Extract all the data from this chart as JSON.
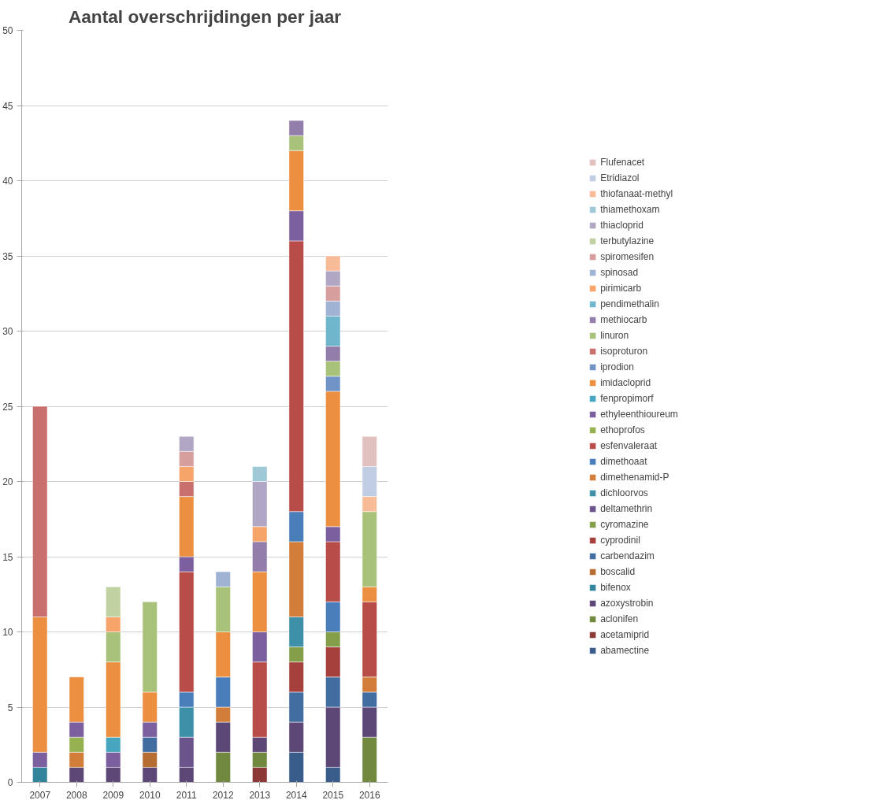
{
  "chart_data": {
    "type": "bar",
    "stacked": true,
    "title": "Aantal overschrijdingen per jaar",
    "categories": [
      "2007",
      "2008",
      "2009",
      "2010",
      "2011",
      "2012",
      "2013",
      "2014",
      "2015",
      "2016"
    ],
    "ylim": [
      0,
      50
    ],
    "yticks": [
      0,
      5,
      10,
      15,
      20,
      25,
      30,
      35,
      40,
      45,
      50
    ],
    "grid": "y",
    "legend": "right",
    "series": [
      {
        "name": "abamectine",
        "color": "#385d8a",
        "values": [
          null,
          null,
          null,
          null,
          null,
          null,
          null,
          2,
          1,
          null
        ]
      },
      {
        "name": "acetamiprid",
        "color": "#8c3836",
        "values": [
          null,
          null,
          null,
          null,
          null,
          null,
          1,
          null,
          null,
          null
        ]
      },
      {
        "name": "aclonifen",
        "color": "#71893f",
        "values": [
          null,
          null,
          null,
          null,
          null,
          2,
          1,
          null,
          null,
          3
        ]
      },
      {
        "name": "azoxystrobin",
        "color": "#5c4776",
        "values": [
          null,
          1,
          1,
          1,
          1,
          2,
          1,
          2,
          4,
          2
        ]
      },
      {
        "name": "bifenox",
        "color": "#31849b",
        "values": [
          1,
          null,
          null,
          null,
          null,
          null,
          null,
          null,
          null,
          null
        ]
      },
      {
        "name": "boscalid",
        "color": "#b66d31",
        "values": [
          null,
          null,
          null,
          1,
          null,
          null,
          null,
          null,
          null,
          null
        ]
      },
      {
        "name": "carbendazim",
        "color": "#426da0",
        "values": [
          null,
          null,
          null,
          1,
          null,
          null,
          null,
          2,
          2,
          1
        ]
      },
      {
        "name": "cyprodinil",
        "color": "#a5403d",
        "values": [
          null,
          null,
          null,
          null,
          null,
          null,
          null,
          2,
          2,
          null
        ]
      },
      {
        "name": "cyromazine",
        "color": "#849e4a",
        "values": [
          null,
          null,
          null,
          null,
          null,
          null,
          null,
          1,
          1,
          null
        ]
      },
      {
        "name": "deltamethrin",
        "color": "#6b548c",
        "values": [
          null,
          null,
          null,
          null,
          2,
          null,
          null,
          null,
          null,
          null
        ]
      },
      {
        "name": "dichloorvos",
        "color": "#3d90a8",
        "values": [
          null,
          null,
          null,
          null,
          2,
          null,
          null,
          2,
          null,
          null
        ]
      },
      {
        "name": "dimethenamid-P",
        "color": "#d27e3a",
        "values": [
          null,
          1,
          null,
          null,
          null,
          1,
          null,
          5,
          null,
          1
        ]
      },
      {
        "name": "dimethoaat",
        "color": "#4a7ebb",
        "values": [
          null,
          null,
          null,
          null,
          1,
          2,
          null,
          2,
          2,
          null
        ]
      },
      {
        "name": "esfenvaleraat",
        "color": "#b84c48",
        "values": [
          null,
          null,
          null,
          null,
          8,
          null,
          5,
          18,
          4,
          5
        ]
      },
      {
        "name": "ethoprofos",
        "color": "#96b250",
        "values": [
          null,
          1,
          null,
          null,
          null,
          null,
          null,
          null,
          null,
          null
        ]
      },
      {
        "name": "ethyleenthioureum",
        "color": "#7b5f9e",
        "values": [
          1,
          1,
          1,
          1,
          1,
          null,
          2,
          2,
          1,
          null
        ]
      },
      {
        "name": "fenpropimorf",
        "color": "#46a5bf",
        "values": [
          null,
          null,
          1,
          null,
          null,
          null,
          null,
          null,
          null,
          null
        ]
      },
      {
        "name": "imidacloprid",
        "color": "#ec8f41",
        "values": [
          9,
          3,
          5,
          2,
          4,
          3,
          4,
          4,
          9,
          1
        ]
      },
      {
        "name": "iprodion",
        "color": "#7094c6",
        "values": [
          null,
          null,
          null,
          null,
          null,
          null,
          null,
          null,
          1,
          null
        ]
      },
      {
        "name": "isoproturon",
        "color": "#c9706e",
        "values": [
          14,
          null,
          null,
          null,
          1,
          null,
          null,
          null,
          null,
          null
        ]
      },
      {
        "name": "linuron",
        "color": "#a9c27a",
        "values": [
          null,
          null,
          2,
          6,
          null,
          3,
          null,
          1,
          1,
          5
        ]
      },
      {
        "name": "methiocarb",
        "color": "#927dab",
        "values": [
          null,
          null,
          null,
          null,
          null,
          null,
          2,
          1,
          1,
          null
        ]
      },
      {
        "name": "pendimethalin",
        "color": "#6fb6cc",
        "values": [
          null,
          null,
          null,
          null,
          null,
          null,
          null,
          null,
          2,
          null
        ]
      },
      {
        "name": "pirimicarb",
        "color": "#f7a46b",
        "values": [
          null,
          null,
          1,
          null,
          1,
          null,
          1,
          null,
          null,
          null
        ]
      },
      {
        "name": "spinosad",
        "color": "#a0b3d4",
        "values": [
          null,
          null,
          null,
          null,
          null,
          1,
          null,
          null,
          1,
          null
        ]
      },
      {
        "name": "spiromesifen",
        "color": "#d69e9d",
        "values": [
          null,
          null,
          null,
          null,
          1,
          null,
          null,
          null,
          1,
          null
        ]
      },
      {
        "name": "terbutylazine",
        "color": "#c1d2a2",
        "values": [
          null,
          null,
          2,
          null,
          null,
          null,
          null,
          null,
          null,
          null
        ]
      },
      {
        "name": "thiacloprid",
        "color": "#b1a7c4",
        "values": [
          null,
          null,
          null,
          null,
          1,
          null,
          3,
          null,
          1,
          null
        ]
      },
      {
        "name": "thiamethoxam",
        "color": "#9fc9d7",
        "values": [
          null,
          null,
          null,
          null,
          null,
          null,
          1,
          null,
          null,
          null
        ]
      },
      {
        "name": "thiofanaat-methyl",
        "color": "#f8bb98",
        "values": [
          null,
          null,
          null,
          null,
          null,
          null,
          null,
          null,
          1,
          1
        ]
      },
      {
        "name": "Etridiazol",
        "color": "#c1cde2",
        "values": [
          null,
          null,
          null,
          null,
          null,
          null,
          null,
          null,
          null,
          2
        ]
      },
      {
        "name": "Flufenacet",
        "color": "#e1c0c0",
        "values": [
          null,
          null,
          null,
          null,
          null,
          null,
          null,
          null,
          null,
          2
        ]
      }
    ]
  }
}
